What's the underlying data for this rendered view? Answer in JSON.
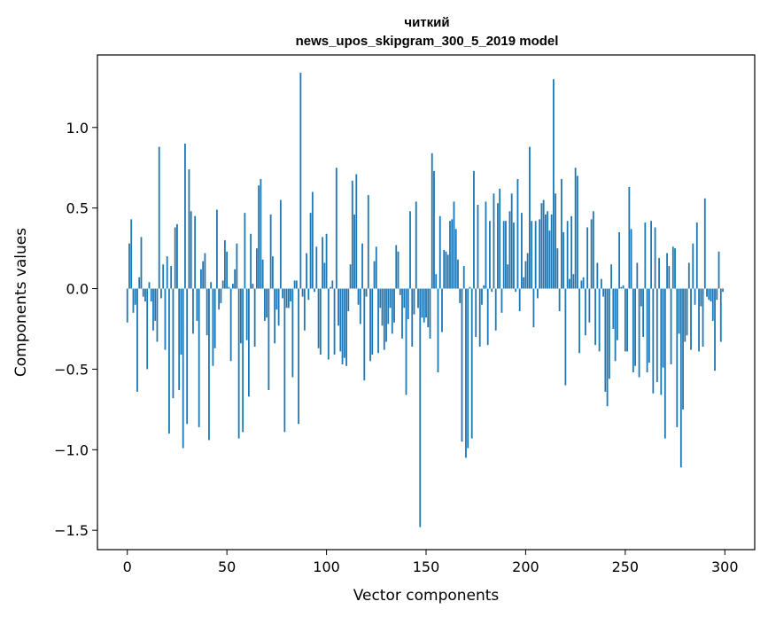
{
  "chart_data": {
    "type": "bar",
    "title": "читкий",
    "subtitle": "news_upos_skipgram_300_5_2019 model",
    "xlabel": "Vector components",
    "ylabel": "Components values",
    "xlim": [
      -15,
      315
    ],
    "ylim": [
      -1.62,
      1.45
    ],
    "x_ticks": [
      0,
      50,
      100,
      150,
      200,
      250,
      300
    ],
    "x_tick_labels": [
      "0",
      "50",
      "100",
      "150",
      "200",
      "250",
      "300"
    ],
    "y_ticks": [
      -1.5,
      -1.0,
      -0.5,
      0.0,
      0.5,
      1.0
    ],
    "y_tick_labels": [
      "−1.5",
      "−1.0",
      "−0.5",
      "0.0",
      "0.5",
      "1.0"
    ],
    "bar_color": "#1f77b4",
    "values": [
      -0.21,
      0.28,
      0.43,
      -0.15,
      -0.1,
      -0.64,
      0.07,
      0.32,
      -0.05,
      -0.08,
      -0.5,
      0.04,
      -0.08,
      -0.26,
      -0.2,
      -0.33,
      0.88,
      -0.06,
      0.15,
      -0.38,
      0.2,
      -0.9,
      0.14,
      -0.68,
      0.38,
      0.4,
      -0.63,
      -0.41,
      -0.99,
      0.9,
      -0.84,
      0.74,
      0.48,
      -0.28,
      0.45,
      -0.2,
      -0.86,
      0.12,
      0.17,
      0.22,
      -0.29,
      -0.94,
      0.04,
      -0.48,
      -0.37,
      0.49,
      -0.13,
      -0.09,
      0.05,
      0.3,
      0.23,
      0.01,
      -0.45,
      0.03,
      0.12,
      0.28,
      -0.93,
      -0.34,
      -0.89,
      0.47,
      -0.32,
      -0.67,
      0.34,
      0.03,
      -0.36,
      0.25,
      0.64,
      0.68,
      0.18,
      -0.2,
      -0.18,
      -0.63,
      0.46,
      0.2,
      -0.34,
      -0.13,
      -0.23,
      0.55,
      -0.06,
      -0.89,
      -0.12,
      -0.12,
      -0.08,
      -0.55,
      0.05,
      0.05,
      -0.84,
      1.34,
      -0.05,
      -0.26,
      0.22,
      -0.07,
      0.47,
      0.6,
      -0.02,
      0.26,
      -0.37,
      -0.41,
      0.32,
      0.16,
      0.34,
      -0.44,
      0.01,
      0.05,
      -0.41,
      0.75,
      -0.23,
      -0.39,
      -0.47,
      -0.43,
      -0.48,
      -0.14,
      0.15,
      0.67,
      0.46,
      0.71,
      -0.1,
      -0.22,
      0.28,
      -0.57,
      -0.05,
      0.58,
      -0.45,
      -0.41,
      0.17,
      0.26,
      -0.4,
      -0.12,
      -0.23,
      -0.38,
      -0.33,
      -0.22,
      -0.12,
      -0.28,
      -0.21,
      0.27,
      0.23,
      -0.04,
      -0.31,
      -0.12,
      -0.66,
      -0.19,
      0.48,
      -0.36,
      -0.16,
      0.54,
      -0.12,
      -1.48,
      -0.18,
      -0.21,
      -0.18,
      -0.24,
      -0.31,
      0.84,
      0.73,
      0.09,
      -0.52,
      0.45,
      -0.27,
      0.24,
      0.23,
      0.21,
      0.42,
      0.43,
      0.54,
      0.37,
      0.18,
      -0.09,
      -0.95,
      0.14,
      -1.05,
      -0.99,
      0.01,
      -0.93,
      0.73,
      -0.3,
      0.52,
      -0.36,
      -0.1,
      0.02,
      0.54,
      -0.35,
      0.42,
      -0.02,
      0.59,
      -0.26,
      0.53,
      0.62,
      -0.15,
      0.42,
      0.42,
      0.15,
      0.48,
      0.59,
      0.41,
      -0.02,
      0.68,
      -0.14,
      0.47,
      0.07,
      0.17,
      0.22,
      0.88,
      0.42,
      -0.24,
      0.42,
      -0.06,
      0.43,
      0.53,
      0.55,
      0.46,
      0.48,
      0.36,
      0.46,
      1.3,
      0.59,
      0.25,
      -0.14,
      0.68,
      0.35,
      -0.6,
      0.42,
      0.06,
      0.45,
      0.09,
      0.75,
      0.7,
      -0.4,
      0.05,
      0.07,
      -0.29,
      0.38,
      -0.21,
      0.43,
      0.48,
      -0.35,
      0.16,
      -0.39,
      0.06,
      -0.05,
      -0.64,
      -0.73,
      -0.56,
      0.15,
      -0.25,
      -0.45,
      -0.32,
      0.35,
      0.01,
      0.02,
      -0.39,
      -0.39,
      0.63,
      0.37,
      -0.52,
      -0.48,
      0.16,
      -0.55,
      -0.11,
      -0.3,
      0.41,
      -0.52,
      -0.46,
      0.42,
      -0.65,
      0.38,
      -0.58,
      0.19,
      -0.66,
      -0.49,
      -0.93,
      0.22,
      0.14,
      -0.47,
      0.26,
      0.25,
      -0.86,
      -0.28,
      -1.11,
      -0.75,
      -0.33,
      -0.29,
      0.16,
      -0.38,
      0.28,
      -0.1,
      0.41,
      -0.39,
      -0.11,
      -0.36,
      0.56,
      -0.05,
      -0.07,
      -0.08,
      -0.2,
      -0.51,
      -0.07,
      0.23,
      -0.33,
      -0.02
    ]
  }
}
